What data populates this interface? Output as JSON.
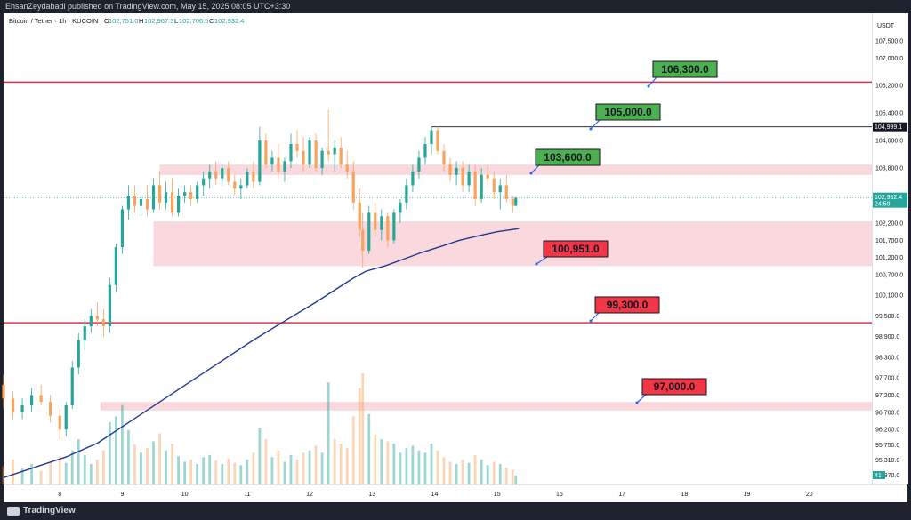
{
  "header": {
    "published": "EhsanZeydabadi published on TradingView.com, May 15, 2025 08:05 UTC+3:30"
  },
  "footer": {
    "brand": "TradingView"
  },
  "legend": {
    "symbol": "Bitcoin / Tether · 1h · KUCOIN",
    "open_label": "O",
    "open": "102,751.0",
    "high_label": "H",
    "high": "102,967.3",
    "low_label": "L",
    "low": "102,706.6",
    "close_label": "C",
    "close": "102,932.4"
  },
  "colors": {
    "up": "#26a69a",
    "down": "#f7a35c",
    "level_line": "#d9334a",
    "zone_fill": "#f8d2d8",
    "moving_average": "#1f3a93",
    "callout_green": "#4caf50",
    "callout_red": "#f23645",
    "last_price": "#26a69a"
  },
  "chart_data": {
    "type": "candlestick",
    "exchange": "KUCOIN",
    "symbol": "Bitcoin / Tether",
    "interval": "1h",
    "y_axis_unit": "USDT",
    "ylim": [
      94600,
      108300
    ],
    "xlim": [
      7.1,
      21.0
    ],
    "y_ticks": [
      "107,500.0",
      "107,000.0",
      "106,200.0",
      "105,400.0",
      "104,600.0",
      "103,800.0",
      "102,200.0",
      "101,700.0",
      "101,200.0",
      "100,700.0",
      "100,100.0",
      "99,500.0",
      "98,900.0",
      "98,300.0",
      "97,700.0",
      "97,200.0",
      "96,700.0",
      "96,200.0",
      "95,750.0",
      "95,310.0",
      "94,870.0"
    ],
    "x_ticks": [
      "8",
      "9",
      "10",
      "11",
      "12",
      "13",
      "14",
      "15",
      "16",
      "17",
      "18",
      "19",
      "20"
    ],
    "current_price": "102,932.4",
    "countdown": "24:59",
    "marked_price": "104,999.1",
    "volume_badge": "41",
    "annotations": [
      {
        "label": "106,300.0",
        "price": 106300,
        "style": "green",
        "kind": "horizontal-line"
      },
      {
        "label": "105,000.0",
        "price": 105000,
        "style": "green",
        "kind": "ray"
      },
      {
        "label": "103,600.0",
        "price": 103600,
        "style": "green",
        "kind": "zone"
      },
      {
        "label": "100,951.0",
        "price": 100951,
        "style": "red",
        "kind": "zone"
      },
      {
        "label": "99,300.0",
        "price": 99300,
        "style": "red",
        "kind": "horizontal-line"
      },
      {
        "label": "97,000.0",
        "price": 97000,
        "style": "red",
        "kind": "zone"
      }
    ],
    "levels": [
      {
        "price": 106300,
        "x_start": 7.1,
        "x_end": 21.0
      },
      {
        "price": 99300,
        "x_start": 7.1,
        "x_end": 21.0
      }
    ],
    "ray": {
      "price": 105000,
      "x_start": 13.95,
      "x_end": 21.0
    },
    "zones": [
      {
        "low": 103600,
        "high": 103900,
        "x_start": 9.6,
        "x_end": 21.0
      },
      {
        "low": 100951,
        "high": 102250,
        "x_start": 9.5,
        "x_end": 21.0
      },
      {
        "low": 96750,
        "high": 97000,
        "x_start": 8.65,
        "x_end": 21.0
      }
    ],
    "ma_points": [
      [
        7.1,
        94800
      ],
      [
        7.6,
        95100
      ],
      [
        8.1,
        95400
      ],
      [
        8.6,
        95800
      ],
      [
        9.1,
        96400
      ],
      [
        9.6,
        97000
      ],
      [
        10.1,
        97600
      ],
      [
        10.6,
        98200
      ],
      [
        11.1,
        98800
      ],
      [
        11.6,
        99350
      ],
      [
        12.1,
        99900
      ],
      [
        12.4,
        100250
      ],
      [
        12.7,
        100600
      ],
      [
        12.9,
        100800
      ],
      [
        13.2,
        100950
      ],
      [
        13.5,
        101150
      ],
      [
        13.8,
        101350
      ],
      [
        14.1,
        101520
      ],
      [
        14.4,
        101700
      ],
      [
        14.7,
        101830
      ],
      [
        15.0,
        101950
      ],
      [
        15.35,
        102040
      ]
    ],
    "candles": [
      [
        7.1,
        97500,
        97800,
        96800,
        97100
      ],
      [
        7.25,
        97100,
        97300,
        96500,
        96700
      ],
      [
        7.4,
        96700,
        97100,
        96500,
        96900
      ],
      [
        7.55,
        96900,
        97400,
        96700,
        97200
      ],
      [
        7.7,
        97200,
        97500,
        96900,
        97000
      ],
      [
        7.85,
        97000,
        97200,
        96400,
        96600
      ],
      [
        8.0,
        96600,
        96800,
        95900,
        96200
      ],
      [
        8.1,
        96200,
        97000,
        96000,
        96900
      ],
      [
        8.2,
        96900,
        98200,
        96800,
        98000
      ],
      [
        8.3,
        98000,
        99000,
        97800,
        98800
      ],
      [
        8.4,
        98800,
        99400,
        98500,
        99200
      ],
      [
        8.5,
        99200,
        99700,
        99000,
        99500
      ],
      [
        8.6,
        99500,
        99900,
        99200,
        99400
      ],
      [
        8.7,
        99400,
        99700,
        98900,
        99200
      ],
      [
        8.8,
        99200,
        100600,
        99000,
        100400
      ],
      [
        8.9,
        100400,
        101600,
        100200,
        101500
      ],
      [
        9.0,
        101500,
        102700,
        101300,
        102600
      ],
      [
        9.1,
        102600,
        103300,
        102300,
        103000
      ],
      [
        9.2,
        103000,
        103300,
        102500,
        102700
      ],
      [
        9.3,
        102700,
        103000,
        102400,
        102900
      ],
      [
        9.4,
        102900,
        103300,
        102400,
        102600
      ],
      [
        9.5,
        102600,
        103500,
        102500,
        103300
      ],
      [
        9.6,
        103300,
        103700,
        102600,
        102800
      ],
      [
        9.7,
        102800,
        103400,
        102600,
        103100
      ],
      [
        9.8,
        103100,
        103500,
        102400,
        102500
      ],
      [
        9.9,
        102500,
        103200,
        102400,
        103000
      ],
      [
        10.0,
        103000,
        103300,
        102800,
        103100
      ],
      [
        10.1,
        103100,
        103300,
        102700,
        102900
      ],
      [
        10.2,
        102900,
        103400,
        102800,
        103300
      ],
      [
        10.3,
        103300,
        103700,
        103000,
        103500
      ],
      [
        10.4,
        103500,
        103900,
        103200,
        103700
      ],
      [
        10.5,
        103700,
        104000,
        103300,
        103500
      ],
      [
        10.6,
        103500,
        103900,
        103300,
        103800
      ],
      [
        10.7,
        103800,
        104000,
        103300,
        103400
      ],
      [
        10.8,
        103400,
        103600,
        103000,
        103200
      ],
      [
        10.9,
        103200,
        103500,
        102900,
        103300
      ],
      [
        11.0,
        103300,
        103800,
        103200,
        103700
      ],
      [
        11.1,
        103700,
        104000,
        103200,
        103400
      ],
      [
        11.2,
        103400,
        105000,
        103300,
        104600
      ],
      [
        11.3,
        104600,
        104800,
        103800,
        103900
      ],
      [
        11.4,
        103900,
        104300,
        103700,
        104100
      ],
      [
        11.5,
        104100,
        104500,
        103500,
        103700
      ],
      [
        11.6,
        103700,
        104100,
        103400,
        104000
      ],
      [
        11.7,
        104000,
        104800,
        103800,
        104500
      ],
      [
        11.8,
        104500,
        104900,
        104100,
        104300
      ],
      [
        11.9,
        104300,
        104700,
        103700,
        103900
      ],
      [
        12.0,
        103900,
        104700,
        103800,
        104600
      ],
      [
        12.1,
        104600,
        104800,
        103700,
        103800
      ],
      [
        12.2,
        103800,
        104400,
        103600,
        104300
      ],
      [
        12.3,
        104300,
        105500,
        104000,
        104200
      ],
      [
        12.4,
        104200,
        104600,
        103700,
        104400
      ],
      [
        12.5,
        104400,
        104700,
        103800,
        103900
      ],
      [
        12.6,
        103900,
        104300,
        103500,
        103700
      ],
      [
        12.7,
        103700,
        104000,
        102600,
        102800
      ],
      [
        12.8,
        102800,
        103200,
        101800,
        102000
      ],
      [
        12.85,
        102000,
        102500,
        100900,
        101400
      ],
      [
        12.95,
        101400,
        102700,
        101300,
        102500
      ],
      [
        13.05,
        102500,
        102800,
        101800,
        102000
      ],
      [
        13.15,
        102000,
        102600,
        101700,
        102400
      ],
      [
        13.25,
        102400,
        102500,
        101500,
        101700
      ],
      [
        13.35,
        101700,
        102600,
        101600,
        102500
      ],
      [
        13.45,
        102500,
        102900,
        102200,
        102800
      ],
      [
        13.55,
        102800,
        103500,
        102600,
        103300
      ],
      [
        13.65,
        103300,
        103900,
        103100,
        103700
      ],
      [
        13.75,
        103700,
        104300,
        103500,
        104100
      ],
      [
        13.85,
        104100,
        104700,
        103900,
        104500
      ],
      [
        13.95,
        104500,
        105000,
        104200,
        104900
      ],
      [
        14.05,
        104900,
        105000,
        104200,
        104300
      ],
      [
        14.15,
        104300,
        104500,
        103700,
        103900
      ],
      [
        14.25,
        103900,
        104100,
        103400,
        103600
      ],
      [
        14.35,
        103600,
        104000,
        103300,
        103800
      ],
      [
        14.45,
        103800,
        104000,
        103100,
        103300
      ],
      [
        14.55,
        103300,
        103900,
        103100,
        103700
      ],
      [
        14.65,
        103700,
        103900,
        102700,
        102900
      ],
      [
        14.75,
        102900,
        103800,
        102800,
        103600
      ],
      [
        14.85,
        103600,
        103900,
        103300,
        103500
      ],
      [
        14.95,
        103500,
        103700,
        102900,
        103100
      ],
      [
        15.05,
        103100,
        103500,
        102600,
        103300
      ],
      [
        15.15,
        103300,
        103600,
        102800,
        102900
      ],
      [
        15.25,
        102900,
        103000,
        102500,
        102700
      ],
      [
        15.3,
        102700,
        102967,
        102706,
        102932
      ]
    ],
    "volume": [
      [
        7.1,
        16,
        "down"
      ],
      [
        7.25,
        22,
        "down"
      ],
      [
        7.4,
        14,
        "up"
      ],
      [
        7.55,
        18,
        "up"
      ],
      [
        7.7,
        12,
        "down"
      ],
      [
        7.85,
        20,
        "down"
      ],
      [
        8.0,
        25,
        "down"
      ],
      [
        8.1,
        19,
        "up"
      ],
      [
        8.2,
        30,
        "up"
      ],
      [
        8.3,
        40,
        "up"
      ],
      [
        8.4,
        26,
        "up"
      ],
      [
        8.5,
        18,
        "up"
      ],
      [
        8.6,
        22,
        "down"
      ],
      [
        8.7,
        30,
        "down"
      ],
      [
        8.8,
        55,
        "up"
      ],
      [
        8.9,
        60,
        "up"
      ],
      [
        9.0,
        70,
        "up"
      ],
      [
        9.1,
        48,
        "up"
      ],
      [
        9.2,
        35,
        "down"
      ],
      [
        9.3,
        28,
        "up"
      ],
      [
        9.4,
        32,
        "down"
      ],
      [
        9.5,
        38,
        "up"
      ],
      [
        9.6,
        45,
        "down"
      ],
      [
        9.7,
        30,
        "up"
      ],
      [
        9.8,
        36,
        "down"
      ],
      [
        9.9,
        25,
        "up"
      ],
      [
        10.0,
        20,
        "up"
      ],
      [
        10.1,
        22,
        "down"
      ],
      [
        10.2,
        18,
        "up"
      ],
      [
        10.3,
        24,
        "up"
      ],
      [
        10.4,
        26,
        "up"
      ],
      [
        10.5,
        21,
        "down"
      ],
      [
        10.6,
        18,
        "up"
      ],
      [
        10.7,
        23,
        "down"
      ],
      [
        10.8,
        19,
        "down"
      ],
      [
        10.9,
        17,
        "up"
      ],
      [
        11.0,
        22,
        "up"
      ],
      [
        11.1,
        28,
        "down"
      ],
      [
        11.2,
        50,
        "up"
      ],
      [
        11.3,
        40,
        "down"
      ],
      [
        11.4,
        24,
        "up"
      ],
      [
        11.5,
        30,
        "down"
      ],
      [
        11.6,
        20,
        "up"
      ],
      [
        11.7,
        26,
        "up"
      ],
      [
        11.8,
        22,
        "down"
      ],
      [
        11.9,
        28,
        "down"
      ],
      [
        12.0,
        30,
        "up"
      ],
      [
        12.1,
        34,
        "down"
      ],
      [
        12.2,
        28,
        "up"
      ],
      [
        12.3,
        90,
        "up"
      ],
      [
        12.4,
        40,
        "down"
      ],
      [
        12.5,
        36,
        "down"
      ],
      [
        12.6,
        32,
        "down"
      ],
      [
        12.7,
        60,
        "down"
      ],
      [
        12.8,
        85,
        "down"
      ],
      [
        12.85,
        98,
        "down"
      ],
      [
        12.95,
        62,
        "up"
      ],
      [
        13.05,
        44,
        "down"
      ],
      [
        13.15,
        40,
        "up"
      ],
      [
        13.25,
        38,
        "down"
      ],
      [
        13.35,
        36,
        "up"
      ],
      [
        13.45,
        28,
        "up"
      ],
      [
        13.55,
        32,
        "up"
      ],
      [
        13.65,
        34,
        "up"
      ],
      [
        13.75,
        30,
        "up"
      ],
      [
        13.85,
        28,
        "up"
      ],
      [
        13.95,
        36,
        "up"
      ],
      [
        14.05,
        30,
        "down"
      ],
      [
        14.15,
        24,
        "down"
      ],
      [
        14.25,
        20,
        "down"
      ],
      [
        14.35,
        18,
        "up"
      ],
      [
        14.45,
        22,
        "down"
      ],
      [
        14.55,
        19,
        "up"
      ],
      [
        14.65,
        26,
        "down"
      ],
      [
        14.75,
        22,
        "up"
      ],
      [
        14.85,
        17,
        "up"
      ],
      [
        14.95,
        20,
        "down"
      ],
      [
        15.05,
        18,
        "up"
      ],
      [
        15.15,
        15,
        "down"
      ],
      [
        15.25,
        13,
        "down"
      ],
      [
        15.3,
        8,
        "up"
      ]
    ]
  }
}
